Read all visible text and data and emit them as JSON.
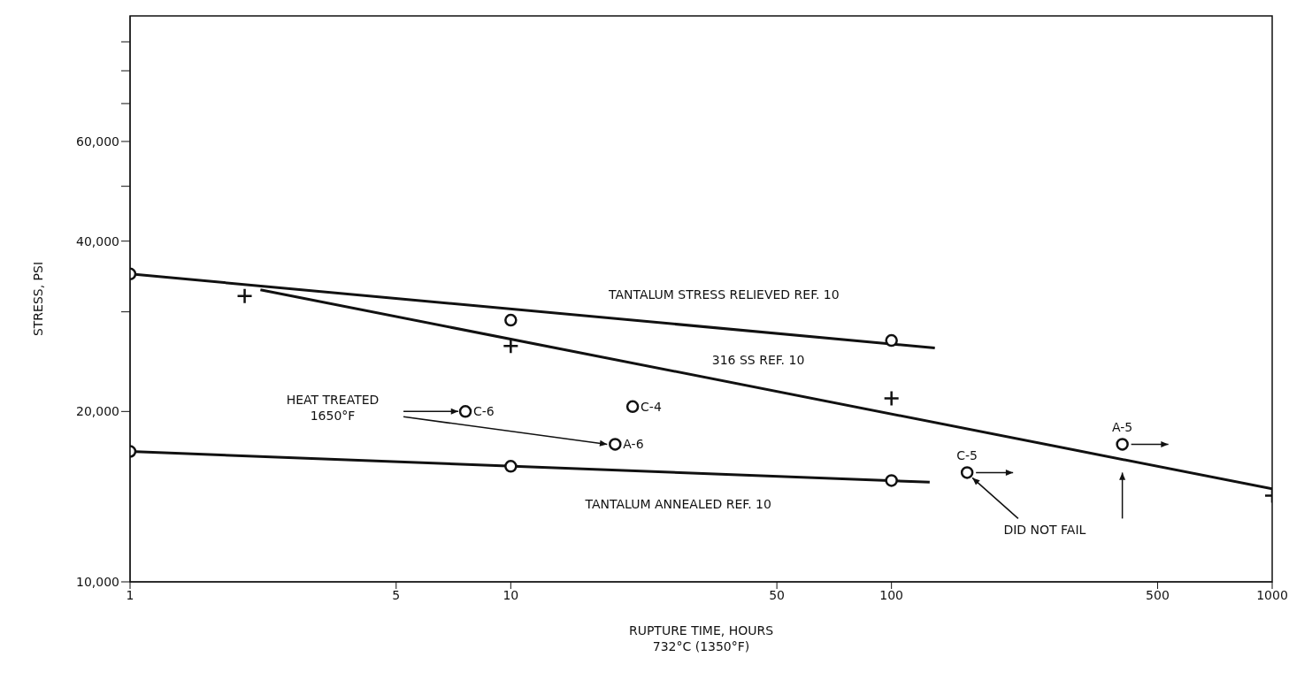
{
  "chart_data": {
    "type": "scatter",
    "xlabel": "RUPTURE TIME, HOURS\n732°C (1350°F)",
    "ylabel": "STRESS, PSI",
    "log": "xy",
    "xlim": [
      1,
      1000
    ],
    "xticks": [
      1,
      5,
      10,
      50,
      100,
      500,
      1000
    ],
    "ylim": [
      10000,
      100000
    ],
    "yticks": [
      {
        "value": 10000,
        "label": "10,000"
      },
      {
        "value": 20000,
        "label": "20,000"
      },
      {
        "value": 30000,
        "label": null
      },
      {
        "value": 40000,
        "label": "40,000"
      },
      {
        "value": 50000,
        "label": null
      },
      {
        "value": 60000,
        "label": "60,000"
      },
      {
        "value": 70000,
        "label": null
      },
      {
        "value": 80000,
        "label": null
      },
      {
        "value": 90000,
        "label": null
      }
    ],
    "series": [
      {
        "type": "line",
        "x": [
          1,
          130
        ],
        "values": [
          35000,
          25900
        ],
        "color": "#111111",
        "marker": "none"
      },
      {
        "type": "line",
        "x": [
          2.2,
          1000
        ],
        "values": [
          32800,
          14600
        ],
        "color": "#111111",
        "marker": "none"
      },
      {
        "type": "line",
        "x": [
          1,
          126
        ],
        "values": [
          17000,
          15000
        ],
        "color": "#111111",
        "marker": "none"
      },
      {
        "x": [
          1,
          10,
          100
        ],
        "values": [
          35000,
          29000,
          26700
        ],
        "color": "#111111",
        "marker": "circle"
      },
      {
        "x": [
          2,
          10,
          100,
          1000
        ],
        "values": [
          32000,
          26100,
          21100,
          14200
        ],
        "color": "#111111",
        "marker": "cross"
      },
      {
        "x": [
          1,
          10,
          100
        ],
        "values": [
          17000,
          16000,
          15100
        ],
        "color": "#111111",
        "marker": "circle"
      },
      {
        "x": [
          7.6,
          20.9,
          18.8,
          158,
          404
        ],
        "values": [
          20000,
          20400,
          17500,
          15600,
          17500
        ],
        "color": "#111111",
        "marker": "circle"
      }
    ],
    "annotations": [
      "TANTALUM STRESS RELIEVED REF. 10",
      "316 SS REF. 10",
      "TANTALUM ANNEALED REF. 10",
      {
        "text": "C-6",
        "x": 7.6,
        "y": 20000
      },
      {
        "text": "C-4",
        "x": 20.9,
        "y": 20400
      },
      {
        "text": "A-6",
        "x": 18.8,
        "y": 17500
      },
      {
        "text": "C-5",
        "x": 158,
        "y": 15600
      },
      {
        "text": "A-5",
        "x": 404,
        "y": 17500
      },
      "HEAT TREATED\n1650°F",
      {
        "text": "DID NOT FAIL",
        "x": 158,
        "y": 15600
      }
    ]
  }
}
